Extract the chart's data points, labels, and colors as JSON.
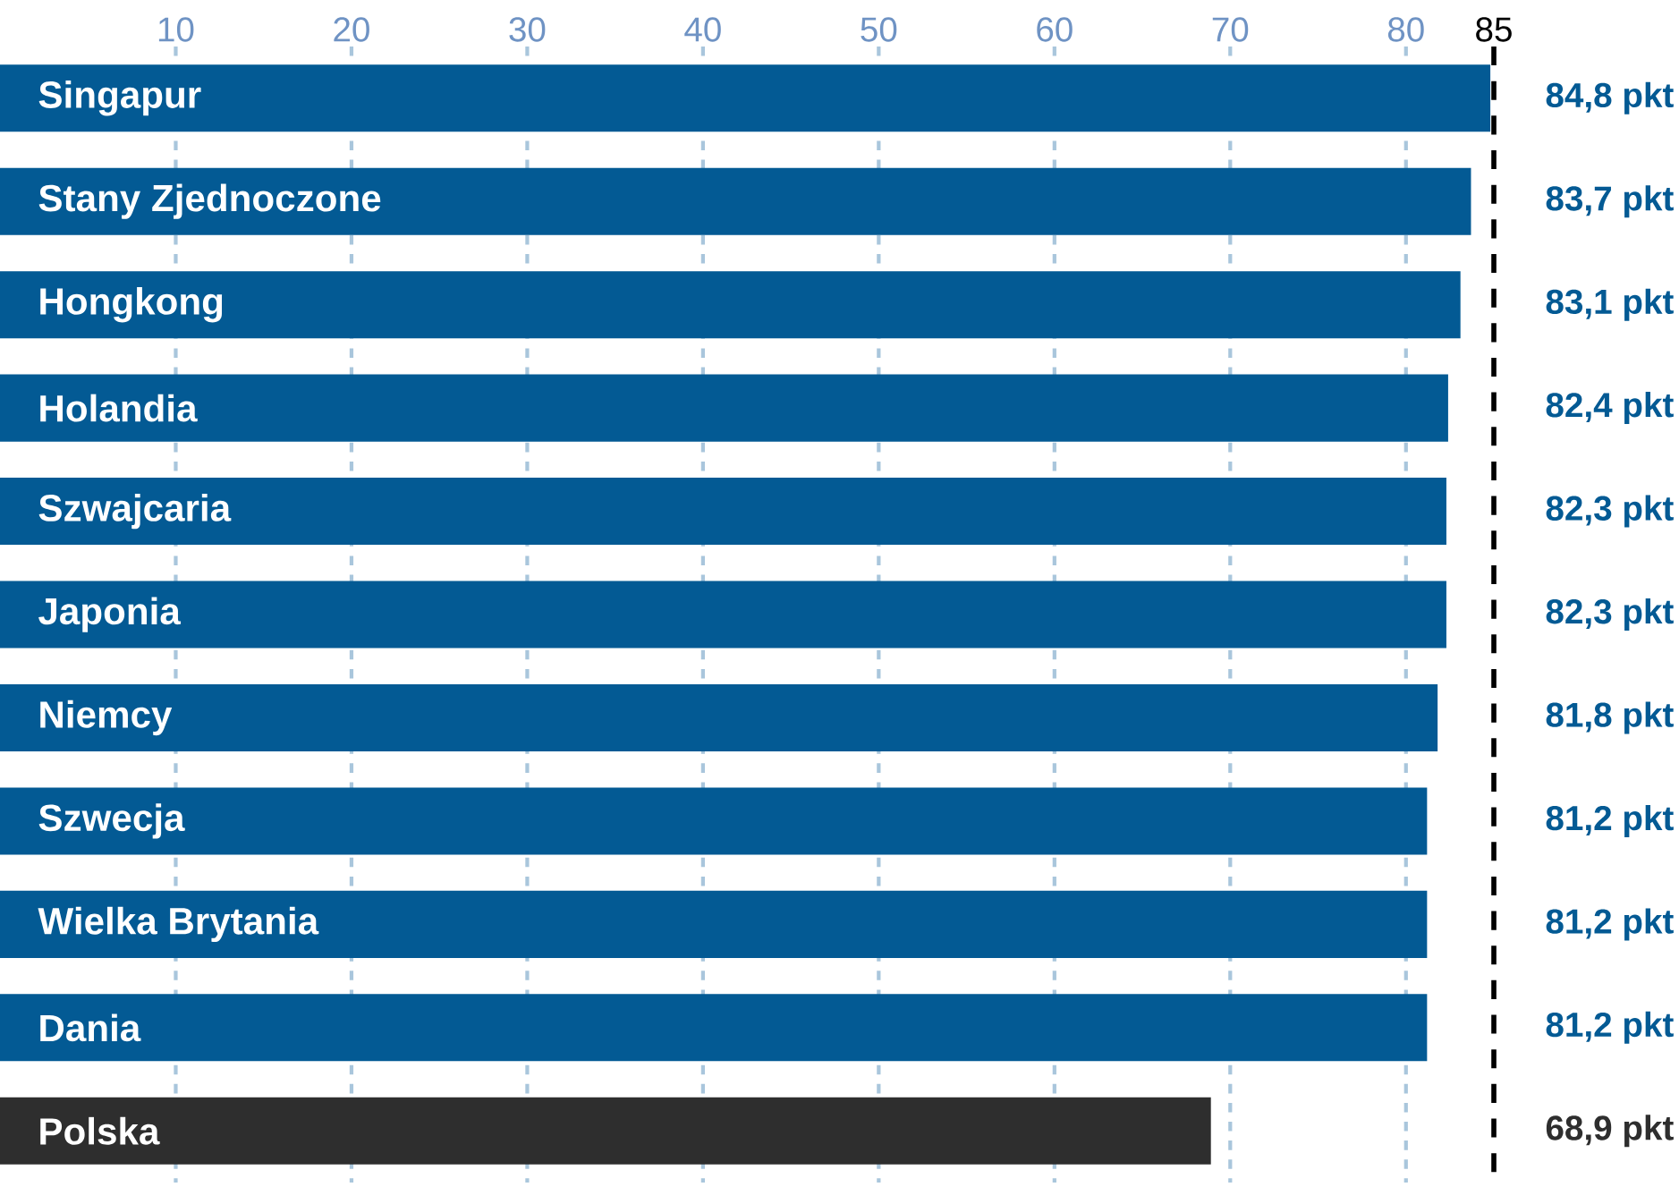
{
  "chart_data": {
    "type": "bar",
    "orientation": "horizontal",
    "categories": [
      "Singapur",
      "Stany Zjednoczone",
      "Hongkong",
      "Holandia",
      "Szwajcaria",
      "Japonia",
      "Niemcy",
      "Szwecja",
      "Wielka Brytania",
      "Dania",
      "Polska"
    ],
    "values": [
      84.8,
      83.7,
      83.1,
      82.4,
      82.3,
      82.3,
      81.8,
      81.2,
      81.2,
      81.2,
      68.9
    ],
    "value_labels": [
      "84,8 pkt",
      "83,7 pkt",
      "83,1 pkt",
      "82,4 pkt",
      "82,3 pkt",
      "82,3 pkt",
      "81,8 pkt",
      "81,2 pkt",
      "81,2 pkt",
      "81,2 pkt",
      "68,9 pkt"
    ],
    "colors": [
      "#035a94",
      "#035a94",
      "#035a94",
      "#035a94",
      "#035a94",
      "#035a94",
      "#035a94",
      "#035a94",
      "#035a94",
      "#035a94",
      "#2e2e2e"
    ],
    "xlim": [
      0,
      85
    ],
    "xticks": [
      10,
      20,
      30,
      40,
      50,
      60,
      70,
      80
    ],
    "grid": "x",
    "ref_lines": [
      {
        "axis": "x",
        "value": 85,
        "label": "85",
        "color": "#000000",
        "line_style": "dashed"
      }
    ]
  }
}
